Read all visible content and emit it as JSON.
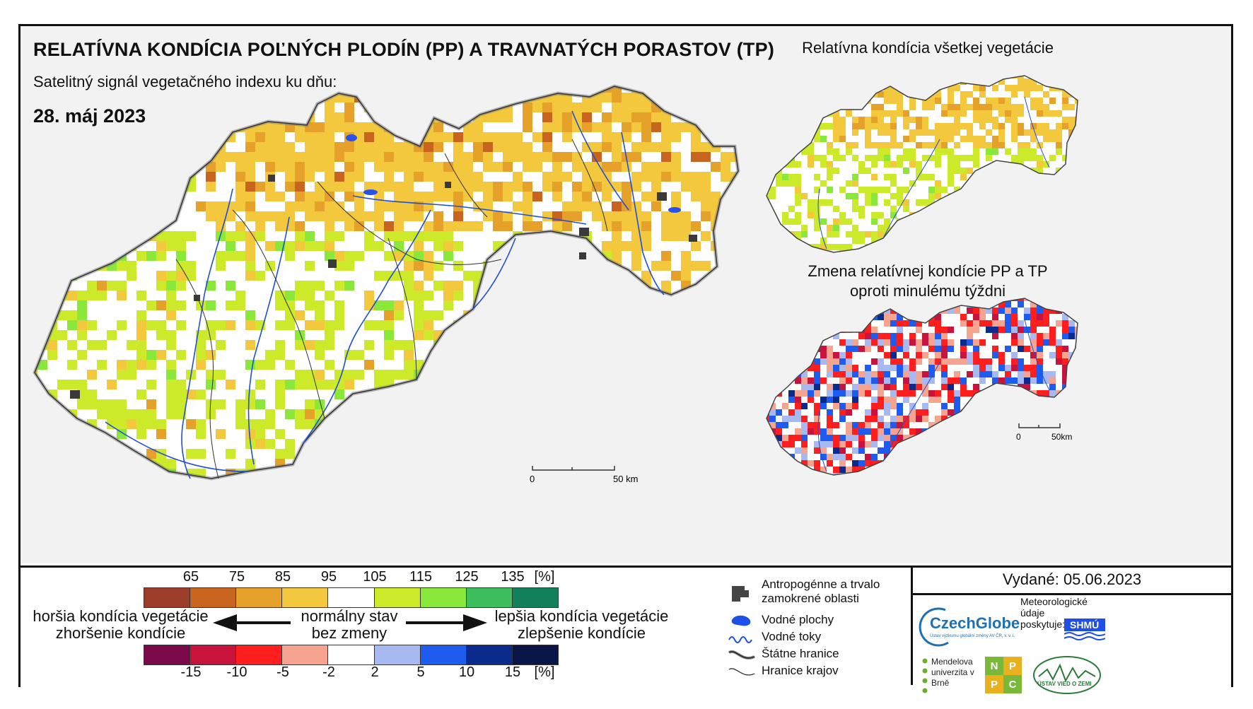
{
  "title": "RELATÍVNA KONDÍCIA POĽNÝCH PLODÍN (PP) A TRAVNATÝCH PORASTOV (TP)",
  "subtitle": "Satelitný signál vegetačného indexu ku dňu:",
  "date": "28. máj 2023",
  "inset_top_title": "Relatívna kondícia všetkej vegetácie",
  "inset_bottom_title_1": "Zmena relatívnej kondície PP a TP",
  "inset_bottom_title_2": "oproti minulému týždni",
  "scale_main": {
    "zero": "0",
    "end": "50 km"
  },
  "scale_inset": {
    "zero": "0",
    "end": "50km"
  },
  "condition_ticks": [
    "65",
    "75",
    "85",
    "95",
    "105",
    "115",
    "125",
    "135",
    "[%]"
  ],
  "condition_colors": [
    "#9c3e2a",
    "#c8641e",
    "#e6a12a",
    "#f3c83c",
    "#ffffff",
    "#cdea2a",
    "#8ae83a",
    "#3cbf5c",
    "#12805a"
  ],
  "change_ticks": [
    "-15",
    "-10",
    "-5",
    "-2",
    "2",
    "5",
    "10",
    "15",
    "[%]"
  ],
  "change_colors": [
    "#7a0a4a",
    "#c8143c",
    "#ff1e1e",
    "#f6a490",
    "#ffffff",
    "#a8b8f0",
    "#1e5cf0",
    "#0a2a8c",
    "#0a1648"
  ],
  "worse_1": "horšia kondícia vegetácie",
  "worse_2": "zhoršenie kondície",
  "normal_1": "normálny stav",
  "normal_2": "bez zmeny",
  "better_1": "lepšia kondícia vegetácie",
  "better_2": "zlepšenie kondície",
  "legend_items": {
    "anthropogenic": "Antropogénne a trvalo zamokrené oblasti",
    "water_bodies": "Vodné plochy",
    "rivers": "Vodné toky",
    "state_border": "Štátne hranice",
    "region_border": "Hranice krajov"
  },
  "issued": "Vydané: 05.06.2023",
  "logos": {
    "czechglobe": "CzechGlobe",
    "czechglobe_sub": "Ústav výzkumu globální změny AV ČR, v. v. i.",
    "meteo": "Meteorologické údaje poskytuje:",
    "shmu": "SHMÚ",
    "mendel": "Mendelova univerzita v Brně",
    "nppc": [
      "N",
      "P",
      "P",
      "C"
    ],
    "uvz": "ÚSTAV VIED O ZEMI"
  }
}
